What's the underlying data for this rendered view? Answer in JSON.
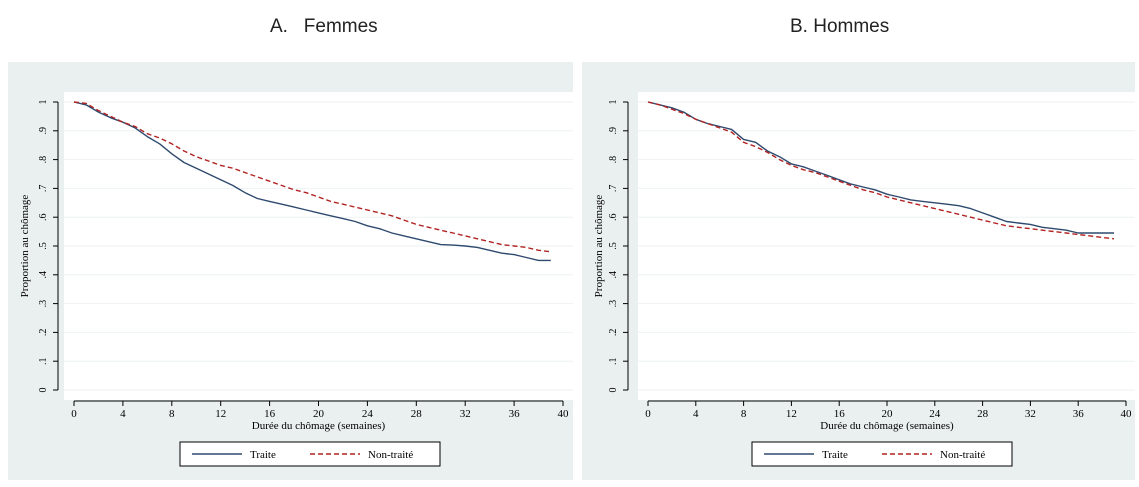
{
  "chart_data": [
    {
      "type": "line",
      "panel_title": "A.   Femmes",
      "xlabel": "Durée du chômage (semaines)",
      "ylabel": "Proportion au chômage",
      "xlim": [
        0,
        40
      ],
      "ylim": [
        0,
        1
      ],
      "xticks": [
        0,
        4,
        8,
        12,
        16,
        20,
        24,
        28,
        32,
        36,
        40
      ],
      "yticks": [
        0,
        0.1,
        0.2,
        0.3,
        0.4,
        0.5,
        0.6,
        0.7,
        0.8,
        0.9,
        1
      ],
      "ytick_labels": [
        "0",
        ".1",
        ".2",
        ".3",
        ".4",
        ".5",
        ".6",
        ".7",
        ".8",
        ".9",
        "1"
      ],
      "legend_position": "bottom",
      "background": "#eaf0f0",
      "series": [
        {
          "name": "Traite",
          "style": "solid",
          "color": "#2e4a6e",
          "x": [
            0,
            1,
            2,
            3,
            4,
            5,
            6,
            7,
            8,
            9,
            10,
            11,
            12,
            13,
            14,
            15,
            16,
            17,
            18,
            19,
            20,
            21,
            22,
            23,
            24,
            25,
            26,
            27,
            28,
            29,
            30,
            31,
            32,
            33,
            34,
            35,
            36,
            37,
            38,
            39
          ],
          "y": [
            1.0,
            0.99,
            0.965,
            0.945,
            0.93,
            0.91,
            0.88,
            0.855,
            0.82,
            0.79,
            0.77,
            0.75,
            0.73,
            0.71,
            0.685,
            0.665,
            0.655,
            0.645,
            0.635,
            0.625,
            0.615,
            0.605,
            0.595,
            0.585,
            0.57,
            0.56,
            0.545,
            0.535,
            0.525,
            0.515,
            0.505,
            0.503,
            0.5,
            0.495,
            0.485,
            0.475,
            0.47,
            0.46,
            0.45,
            0.45
          ]
        },
        {
          "name": "Non-traité",
          "style": "dashed",
          "color": "#b22222",
          "x": [
            0,
            1,
            2,
            3,
            4,
            5,
            6,
            7,
            8,
            9,
            10,
            11,
            12,
            13,
            14,
            15,
            16,
            17,
            18,
            19,
            20,
            21,
            22,
            23,
            24,
            25,
            26,
            27,
            28,
            29,
            30,
            31,
            32,
            33,
            34,
            35,
            36,
            37,
            38,
            39
          ],
          "y": [
            1.0,
            0.995,
            0.97,
            0.95,
            0.93,
            0.915,
            0.89,
            0.875,
            0.855,
            0.83,
            0.81,
            0.795,
            0.78,
            0.77,
            0.755,
            0.74,
            0.725,
            0.71,
            0.695,
            0.685,
            0.67,
            0.655,
            0.645,
            0.635,
            0.625,
            0.615,
            0.605,
            0.59,
            0.575,
            0.565,
            0.555,
            0.545,
            0.535,
            0.525,
            0.515,
            0.505,
            0.5,
            0.495,
            0.485,
            0.48
          ]
        }
      ]
    },
    {
      "type": "line",
      "panel_title": "B. Hommes",
      "xlabel": "Durée du chômage (semaines)",
      "ylabel": "Proportion au chômage",
      "xlim": [
        0,
        40
      ],
      "ylim": [
        0,
        1
      ],
      "xticks": [
        0,
        4,
        8,
        12,
        16,
        20,
        24,
        28,
        32,
        36,
        40
      ],
      "yticks": [
        0,
        0.1,
        0.2,
        0.3,
        0.4,
        0.5,
        0.6,
        0.7,
        0.8,
        0.9,
        1
      ],
      "ytick_labels": [
        "0",
        ".1",
        ".2",
        ".3",
        ".4",
        ".5",
        ".6",
        ".7",
        ".8",
        ".9",
        "1"
      ],
      "legend_position": "bottom",
      "background": "#eaf0f0",
      "series": [
        {
          "name": "Traite",
          "style": "solid",
          "color": "#2e4a6e",
          "x": [
            0,
            1,
            2,
            3,
            4,
            5,
            6,
            7,
            8,
            9,
            10,
            11,
            12,
            13,
            14,
            15,
            16,
            17,
            18,
            19,
            20,
            21,
            22,
            23,
            24,
            25,
            26,
            27,
            28,
            29,
            30,
            31,
            32,
            33,
            34,
            35,
            36,
            37,
            38,
            39
          ],
          "y": [
            1.0,
            0.99,
            0.98,
            0.965,
            0.94,
            0.925,
            0.915,
            0.905,
            0.87,
            0.86,
            0.83,
            0.81,
            0.785,
            0.775,
            0.76,
            0.745,
            0.73,
            0.715,
            0.705,
            0.695,
            0.68,
            0.67,
            0.66,
            0.655,
            0.65,
            0.645,
            0.64,
            0.63,
            0.615,
            0.6,
            0.585,
            0.58,
            0.575,
            0.565,
            0.56,
            0.555,
            0.545,
            0.545,
            0.545,
            0.545
          ]
        },
        {
          "name": "Non-traité",
          "style": "dashed",
          "color": "#b22222",
          "x": [
            0,
            1,
            2,
            3,
            4,
            5,
            6,
            7,
            8,
            9,
            10,
            11,
            12,
            13,
            14,
            15,
            16,
            17,
            18,
            19,
            20,
            21,
            22,
            23,
            24,
            25,
            26,
            27,
            28,
            29,
            30,
            31,
            32,
            33,
            34,
            35,
            36,
            37,
            38,
            39
          ],
          "y": [
            1.0,
            0.99,
            0.975,
            0.96,
            0.94,
            0.925,
            0.91,
            0.895,
            0.86,
            0.845,
            0.825,
            0.8,
            0.78,
            0.765,
            0.755,
            0.74,
            0.725,
            0.71,
            0.695,
            0.685,
            0.67,
            0.66,
            0.65,
            0.64,
            0.63,
            0.62,
            0.61,
            0.6,
            0.59,
            0.58,
            0.57,
            0.565,
            0.56,
            0.555,
            0.55,
            0.545,
            0.54,
            0.535,
            0.53,
            0.525
          ]
        }
      ]
    }
  ]
}
